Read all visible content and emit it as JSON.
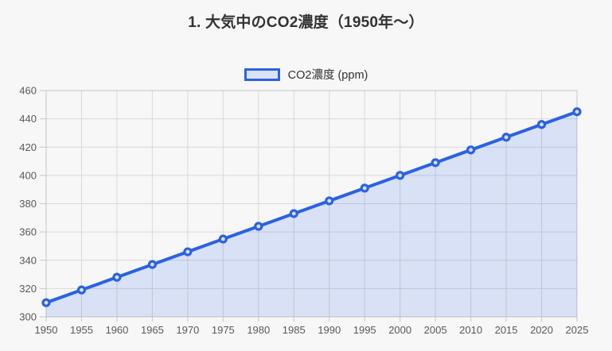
{
  "title": "1. 大気中のCO2濃度（1950年〜）",
  "legend": {
    "label": "CO2濃度 (ppm)"
  },
  "chart_data": {
    "type": "line",
    "title": "1. 大気中のCO2濃度（1950年〜）",
    "legend_entries": [
      "CO2濃度 (ppm)"
    ],
    "legend_position": "top",
    "x": [
      1950,
      1955,
      1960,
      1965,
      1970,
      1975,
      1980,
      1985,
      1990,
      1995,
      2000,
      2005,
      2010,
      2015,
      2020,
      2025
    ],
    "series": [
      {
        "name": "CO2濃度 (ppm)",
        "values": [
          310,
          319,
          328,
          337,
          346,
          355,
          364,
          373,
          382,
          391,
          400,
          409,
          418,
          427,
          436,
          445
        ]
      }
    ],
    "xlabel": "",
    "ylabel": "",
    "xlim": [
      1950,
      2025
    ],
    "ylim": [
      300,
      460
    ],
    "ytick_step": 20,
    "grid": true,
    "area_fill": true,
    "colors": {
      "line": "#2b62e2",
      "area": "rgba(43, 98, 226, 0.15)",
      "marker_stroke": "#2b62e2",
      "marker_fill": "#d9e0f5",
      "grid": "#d8d8d8",
      "border": "#c6c6c6",
      "tick_text": "#595959",
      "title_text": "#333333",
      "background": "#f7f7f8"
    }
  }
}
